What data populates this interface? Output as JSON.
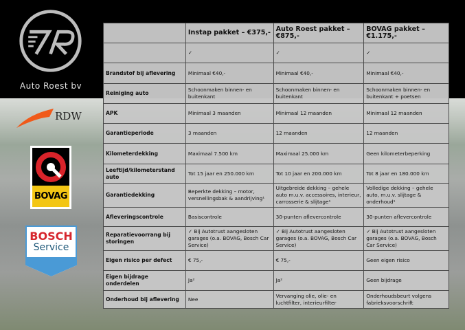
{
  "brand": {
    "name": "Auto Roest bv",
    "logos": [
      "RDW",
      "BOVAG",
      "BOSCH",
      "Service"
    ]
  },
  "table": {
    "columns": [
      "",
      "Instap pakket – €375,-",
      "Auto Roest pakket – €875,-",
      "BOVAG pakket – €1.175,-"
    ],
    "rows": [
      {
        "label": "",
        "values": [
          "✓",
          "✓",
          "✓"
        ]
      },
      {
        "label": "Brandstof bij aflevering",
        "values": [
          "Minimaal €40,-",
          "Minimaal €40,-",
          "Minimaal €40,-"
        ]
      },
      {
        "label": "Reiniging auto",
        "values": [
          "Schoonmaken binnen- en buitenkant",
          "Schoonmaken binnen- en buitenkant",
          "Schoonmaken binnen- en buitenkant + poetsen"
        ]
      },
      {
        "label": "APK",
        "values": [
          "Minimaal 3 maanden",
          "Minimaal 12 maanden",
          "Minimaal 12 maanden"
        ]
      },
      {
        "label": "Garantieperiode",
        "values": [
          "3 maanden",
          "12 maanden",
          "12 maanden"
        ]
      },
      {
        "label": "Kilometerdekking",
        "values": [
          "Maximaal 7.500 km",
          "Maximaal 25.000 km",
          "Geen kilometerbeperking"
        ]
      },
      {
        "label": "Leeftijd/kilometerstand auto",
        "values": [
          "Tot 15 jaar en 250.000 km",
          "Tot 10 jaar en 200.000 km",
          "Tot 8 jaar en 180.000 km"
        ]
      },
      {
        "label": "Garantiedekking",
        "values": [
          "Beperkte dekking – motor, versnellingsbak & aandrijving¹",
          "Uitgebreide dekking – gehele auto m.u.v. accessoires, interieur, carrosserie & slijtage¹",
          "Volledige dekking – gehele auto, m.u.v. slijtage & onderhoud¹"
        ]
      },
      {
        "label": "Afleveringscontrole",
        "values": [
          "Basiscontrole",
          "30-punten aflevercontrole",
          "30-punten aflevercontrole"
        ]
      },
      {
        "label": "Reparatievoorrang bij storingen",
        "values": [
          "✓ Bij Autotrust aangesloten garages (o.a. BOVAG, Bosch Car Service)",
          "✓ Bij Autotrust aangesloten garages (o.a. BOVAG, Bosch Car Service)",
          "✓ Bij Autotrust aangesloten garages (o.a. BOVAG, Bosch Car Service)"
        ]
      },
      {
        "label": "Eigen risico per defect",
        "values": [
          "€ 75,-",
          "€ 75,-",
          "Geen eigen risico"
        ]
      },
      {
        "label": "Eigen bijdrage onderdelen",
        "values": [
          "Ja²",
          "Ja²",
          "Geen bijdrage"
        ]
      },
      {
        "label": "Onderhoud bij aflevering",
        "values": [
          "Nee",
          "Vervanging olie, olie- en luchtfilter, interieurfilter",
          "Onderhoudsbeurt volgens fabrieksvoorschrift"
        ]
      }
    ]
  }
}
